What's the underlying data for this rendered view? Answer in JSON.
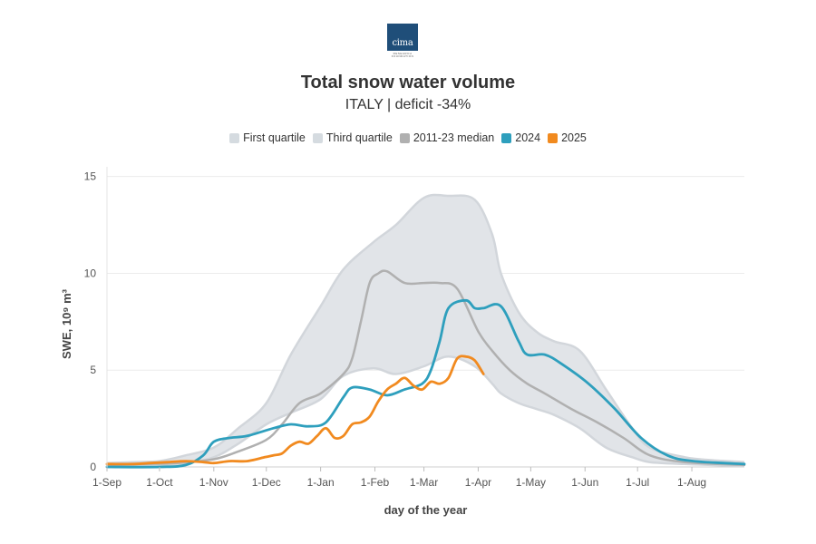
{
  "logo": {
    "text": "cima",
    "subtext": "RESEARCH FOUNDATION",
    "color": "#1f4e79"
  },
  "chart_data": {
    "type": "line",
    "title": "Total snow water volume",
    "subtitle": "ITALY | deficit -34%",
    "xlabel": "day of the year",
    "ylabel": "SWE, 10⁹ m³",
    "x_ticks": [
      "1-Sep",
      "1-Oct",
      "1-Nov",
      "1-Dec",
      "1-Jan",
      "1-Feb",
      "1-Mar",
      "1-Apr",
      "1-May",
      "1-Jun",
      "1-Jul",
      "1-Aug"
    ],
    "y_ticks": [
      "0",
      "5",
      "10",
      "15"
    ],
    "x_unit": "day of the year (from 1-Sep)",
    "xlim": [
      0,
      364
    ],
    "ylim": [
      0,
      15.5
    ],
    "grid": "horizontal",
    "legend_position": "top",
    "legend": [
      {
        "label": "First quartile",
        "color": "#d5dbe0"
      },
      {
        "label": "Third quartile",
        "color": "#d5dbe0"
      },
      {
        "label": "2011-23 median",
        "color": "#b0b0b0"
      },
      {
        "label": "2024",
        "color": "#2e9fbd"
      },
      {
        "label": "2025",
        "color": "#f18a1f"
      }
    ],
    "band": {
      "name": "interquartile range",
      "color": "#e1e4e8",
      "edge_color": "#d2d6db",
      "x": [
        0,
        15,
        30,
        45,
        61,
        75,
        91,
        105,
        122,
        135,
        152,
        165,
        181,
        195,
        210,
        220,
        225,
        235,
        245,
        255,
        270,
        285,
        300,
        310,
        330,
        345,
        364
      ],
      "upper": [
        0.2,
        0.25,
        0.3,
        0.6,
        1.0,
        2.0,
        3.3,
        5.8,
        8.3,
        10.2,
        11.6,
        12.5,
        13.9,
        14.0,
        13.8,
        12.0,
        10.0,
        8.0,
        7.0,
        6.5,
        6.0,
        4.0,
        2.0,
        1.0,
        0.5,
        0.35,
        0.25
      ],
      "lower": [
        0.0,
        0.05,
        0.1,
        0.2,
        0.5,
        1.2,
        2.2,
        2.8,
        3.5,
        4.7,
        5.1,
        4.8,
        5.2,
        5.7,
        5.2,
        4.3,
        3.8,
        3.3,
        3.0,
        2.7,
        2.0,
        1.0,
        0.5,
        0.25,
        0.15,
        0.1,
        0.05
      ]
    },
    "series": [
      {
        "name": "2011-23 median",
        "color": "#b0b0b0",
        "x": [
          0,
          20,
          40,
          61,
          75,
          91,
          100,
          110,
          122,
          135,
          140,
          145,
          150,
          155,
          160,
          170,
          181,
          190,
          200,
          212,
          220,
          230,
          240,
          250,
          265,
          280,
          295,
          310,
          330,
          364
        ],
        "values": [
          0.1,
          0.15,
          0.2,
          0.4,
          0.8,
          1.4,
          2.2,
          3.3,
          3.8,
          4.8,
          5.6,
          7.5,
          9.5,
          10.0,
          10.1,
          9.5,
          9.5,
          9.5,
          9.2,
          7.0,
          6.0,
          5.0,
          4.3,
          3.8,
          3.0,
          2.3,
          1.5,
          0.6,
          0.25,
          0.1
        ]
      },
      {
        "name": "2024",
        "color": "#2e9fbd",
        "x": [
          0,
          30,
          45,
          55,
          61,
          70,
          80,
          95,
          105,
          115,
          125,
          135,
          140,
          150,
          160,
          170,
          180,
          185,
          190,
          195,
          205,
          210,
          215,
          225,
          235,
          240,
          250,
          260,
          275,
          290,
          305,
          320,
          335,
          364
        ],
        "values": [
          0.0,
          0.0,
          0.1,
          0.6,
          1.3,
          1.5,
          1.6,
          2.0,
          2.2,
          2.1,
          2.3,
          3.6,
          4.1,
          4.0,
          3.7,
          4.0,
          4.3,
          5.0,
          6.5,
          8.2,
          8.6,
          8.2,
          8.2,
          8.3,
          6.5,
          5.8,
          5.8,
          5.3,
          4.3,
          3.0,
          1.5,
          0.6,
          0.3,
          0.15
        ]
      },
      {
        "name": "2025",
        "color": "#f18a1f",
        "x": [
          0,
          15,
          25,
          35,
          45,
          55,
          61,
          70,
          80,
          90,
          95,
          100,
          105,
          110,
          115,
          120,
          125,
          130,
          135,
          140,
          145,
          150,
          155,
          160,
          165,
          170,
          175,
          180,
          185,
          190,
          195,
          200,
          205,
          210,
          215
        ],
        "values": [
          0.15,
          0.15,
          0.2,
          0.25,
          0.3,
          0.25,
          0.2,
          0.3,
          0.3,
          0.5,
          0.6,
          0.7,
          1.1,
          1.3,
          1.2,
          1.6,
          2.0,
          1.5,
          1.6,
          2.2,
          2.3,
          2.6,
          3.4,
          4.0,
          4.3,
          4.6,
          4.2,
          4.0,
          4.4,
          4.3,
          4.6,
          5.6,
          5.7,
          5.5,
          4.8
        ]
      }
    ]
  }
}
